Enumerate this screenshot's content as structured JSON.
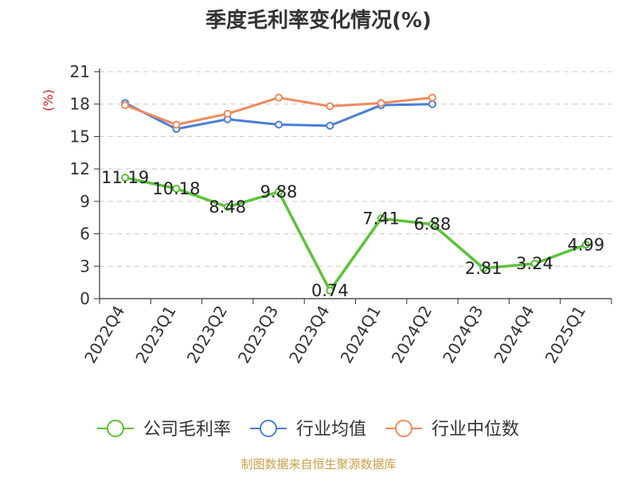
{
  "chart_data": {
    "type": "line",
    "title": "季度毛利率变化情况(%)",
    "y_unit_label": "(%)",
    "categories": [
      "2022Q4",
      "2023Q1",
      "2023Q2",
      "2023Q3",
      "2023Q4",
      "2024Q1",
      "2024Q2",
      "2024Q3",
      "2024Q4",
      "2025Q1"
    ],
    "ylim": [
      0,
      21
    ],
    "yticks": [
      0,
      3,
      6,
      9,
      12,
      15,
      18,
      21
    ],
    "grid": true,
    "legend_position": "bottom",
    "series": [
      {
        "name": "公司毛利率",
        "color": "#5cc23a",
        "values": [
          11.19,
          10.18,
          8.48,
          9.88,
          0.74,
          7.41,
          6.88,
          2.81,
          3.24,
          4.99
        ],
        "labels": [
          "11.19",
          "10.18",
          "8.48",
          "9.88",
          "0.74",
          "7.41",
          "6.88",
          "2.81",
          "3.24",
          "4.99"
        ]
      },
      {
        "name": "行业均值",
        "color": "#4a7ed8",
        "values": [
          18.1,
          15.7,
          16.6,
          16.1,
          16.0,
          17.9,
          18.0,
          null,
          null,
          null
        ]
      },
      {
        "name": "行业中位数",
        "color": "#f08a5d",
        "values": [
          17.9,
          16.1,
          17.1,
          18.6,
          17.8,
          18.1,
          18.6,
          null,
          null,
          null
        ]
      }
    ],
    "source_note": "制图数据来自恒生聚源数据库"
  }
}
